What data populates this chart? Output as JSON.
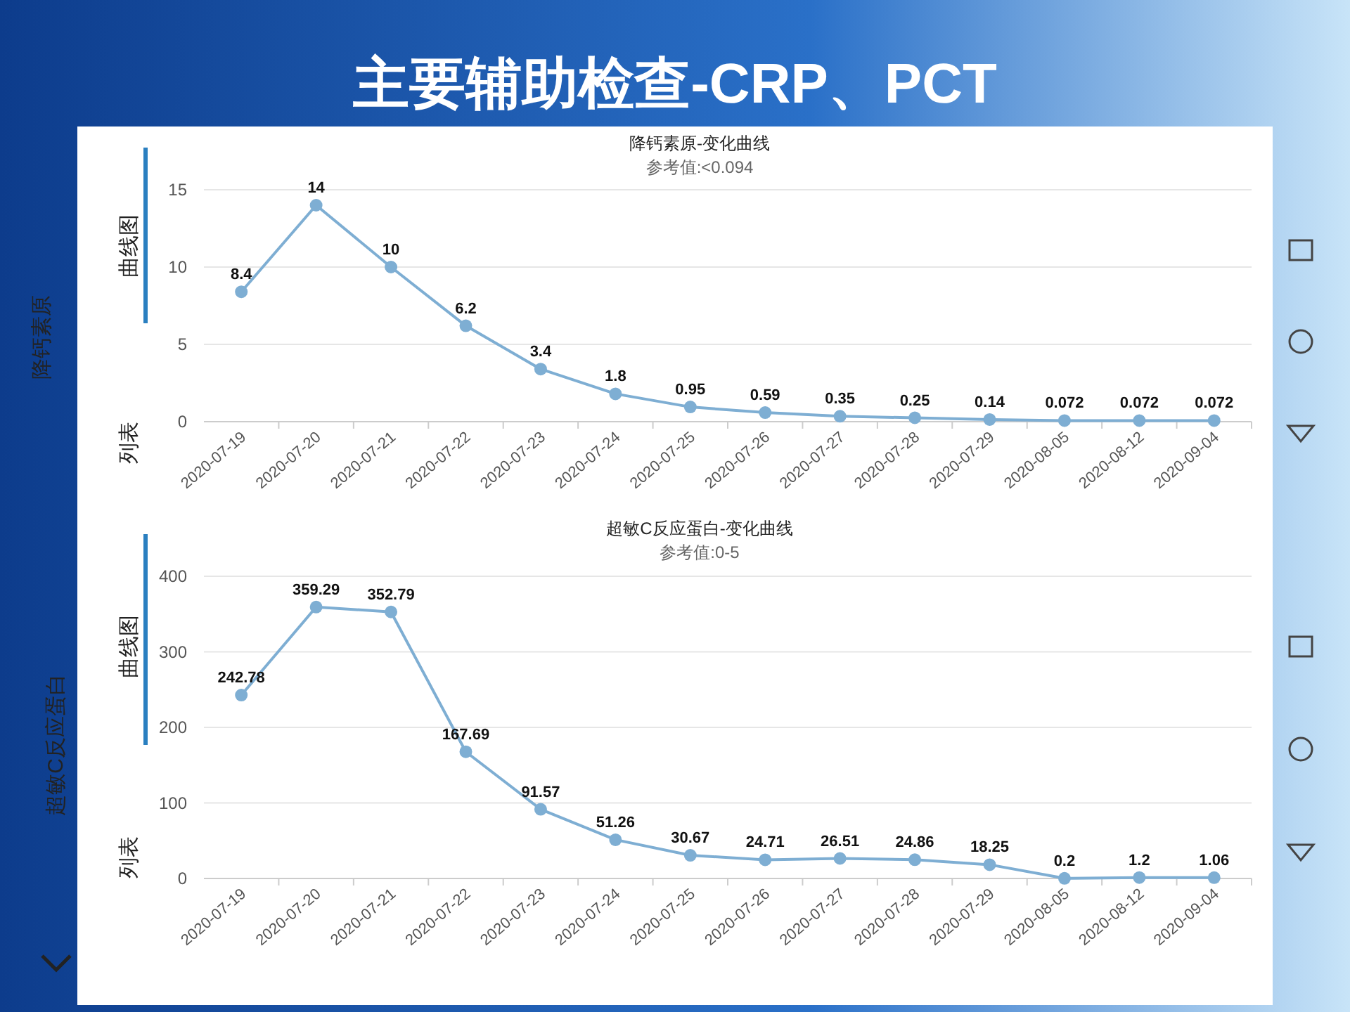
{
  "chart_data": [
    {
      "type": "line",
      "title": "降钙素原-变化曲线",
      "subtitle": "参考值:<0.094",
      "categories": [
        "2020-07-19",
        "2020-07-20",
        "2020-07-21",
        "2020-07-22",
        "2020-07-23",
        "2020-07-24",
        "2020-07-25",
        "2020-07-26",
        "2020-07-27",
        "2020-07-28",
        "2020-07-29",
        "2020-08-05",
        "2020-08-12",
        "2020-09-04"
      ],
      "values": [
        8.4,
        14,
        10,
        6.2,
        3.4,
        1.8,
        0.95,
        0.59,
        0.35,
        0.25,
        0.14,
        0.072,
        0.072,
        0.072
      ],
      "color": "#7eaed3",
      "ylim": [
        0,
        15
      ],
      "yticks": [
        0,
        5,
        10,
        15
      ],
      "grid": "y",
      "marker": "circle",
      "data_labels": true,
      "annotations": [
        "主要辅助检查-CRP、PCT",
        "降钙素原",
        "曲线图",
        "列表"
      ]
    },
    {
      "type": "line",
      "title": "超敏C反应蛋白-变化曲线",
      "subtitle": "参考值:0-5",
      "categories": [
        "2020-07-19",
        "2020-07-20",
        "2020-07-21",
        "2020-07-22",
        "2020-07-23",
        "2020-07-24",
        "2020-07-25",
        "2020-07-26",
        "2020-07-27",
        "2020-07-28",
        "2020-07-29",
        "2020-08-05",
        "2020-08-12",
        "2020-09-04"
      ],
      "values": [
        242.78,
        359.29,
        352.79,
        167.69,
        91.57,
        51.26,
        30.67,
        24.71,
        26.51,
        24.86,
        18.25,
        0.2,
        1.2,
        1.06
      ],
      "color": "#7eaed3",
      "ylim": [
        0,
        400
      ],
      "yticks": [
        0,
        100,
        200,
        300,
        400
      ],
      "grid": "y",
      "marker": "circle",
      "data_labels": true,
      "annotations": [
        "超敏C反应蛋白",
        "曲线图",
        "列表"
      ]
    }
  ]
}
